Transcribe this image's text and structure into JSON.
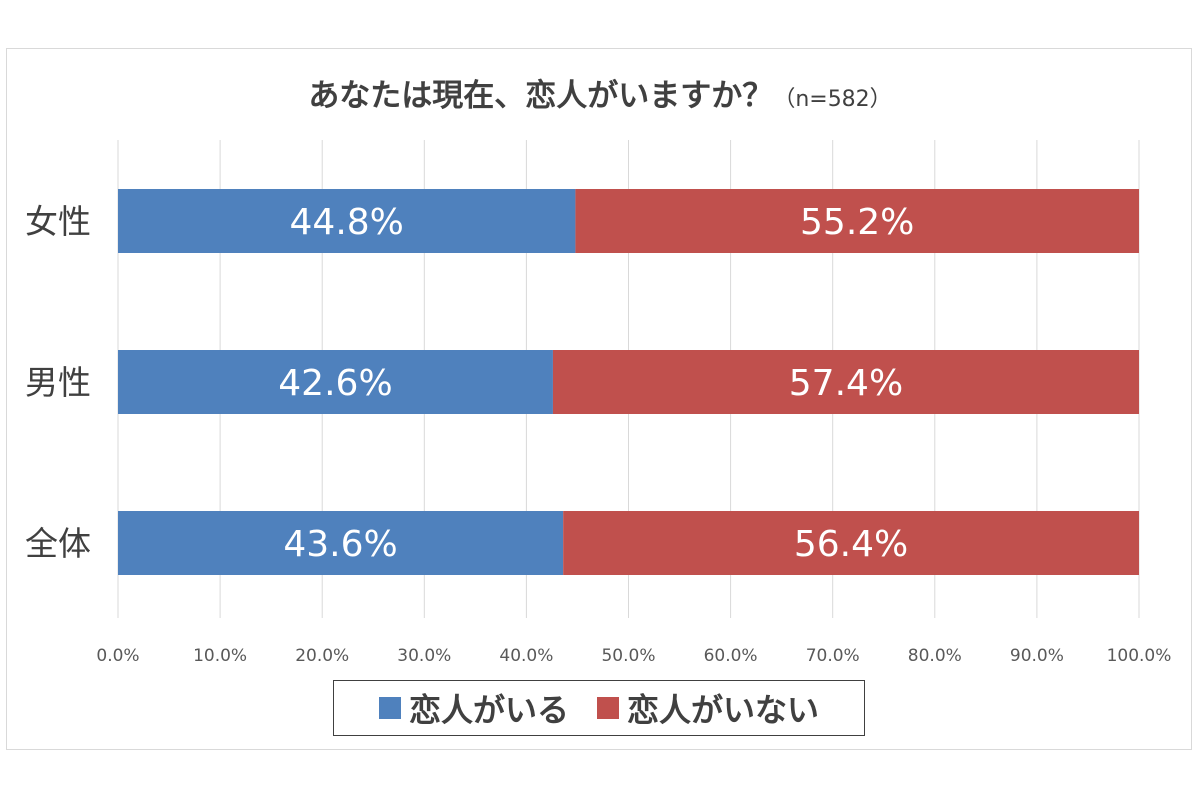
{
  "chart_data": {
    "type": "bar",
    "orientation": "horizontal",
    "stacked": "percent",
    "title": "あなたは現在、恋人がいますか？",
    "subtitle": "（n=582）",
    "categories": [
      "女性",
      "男性",
      "全体"
    ],
    "series": [
      {
        "name": "恋人がいる",
        "color": "#4f81bd",
        "values": [
          44.8,
          42.6,
          43.6
        ],
        "labels": [
          "44.8%",
          "42.6%",
          "43.6%"
        ]
      },
      {
        "name": "恋人がいない",
        "color": "#c0504d",
        "values": [
          55.2,
          57.4,
          56.4
        ],
        "labels": [
          "55.2%",
          "57.4%",
          "56.4%"
        ]
      }
    ],
    "xlim": [
      0,
      100
    ],
    "x_ticks": [
      "0.0%",
      "10.0%",
      "20.0%",
      "30.0%",
      "40.0%",
      "50.0%",
      "60.0%",
      "70.0%",
      "80.0%",
      "90.0%",
      "100.0%"
    ],
    "grid": true,
    "legend_position": "bottom"
  }
}
